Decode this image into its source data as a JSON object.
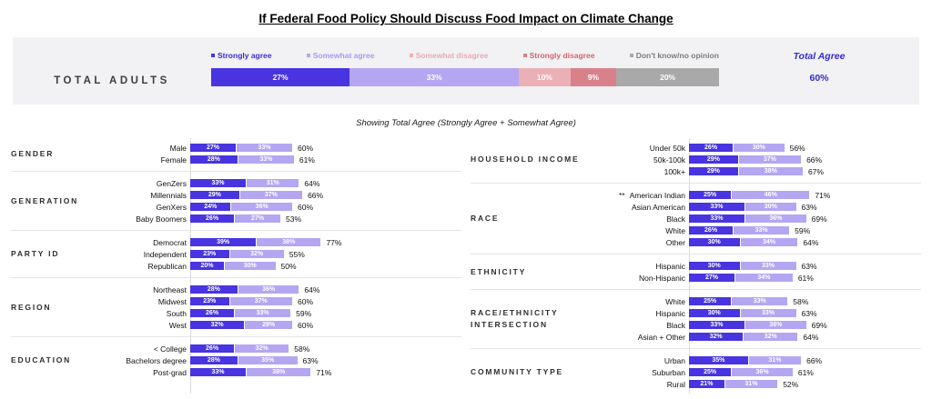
{
  "chart_data": {
    "type": "bar",
    "stacked": true,
    "title": "If Federal Food Policy Should Discuss Food Impact on Climate Change",
    "subtitle": "Showing Total Agree (Strongly Agree + Somewhat Agree)",
    "colors": {
      "strongly_agree": "#4834e0",
      "somewhat_agree": "#b5a6f2",
      "somewhat_disagree": "#eab0b6",
      "strongly_disagree": "#d8818b",
      "dont_know": "#a9a9a9",
      "accent_blue": "#352bd1",
      "band_background": "#f2f1f3"
    },
    "legend": [
      {
        "key": "strongly_agree",
        "label": "Strongly agree",
        "text_color": "#3a2bd4"
      },
      {
        "key": "somewhat_agree",
        "label": "Somewhat agree",
        "text_color": "#a89bf0"
      },
      {
        "key": "somewhat_disagree",
        "label": "Somewhat disagree",
        "text_color": "#eaacb4"
      },
      {
        "key": "strongly_disagree",
        "label": "Strongly disagree",
        "text_color": "#d56470"
      },
      {
        "key": "dont_know",
        "label": "Don't know/no opinion",
        "text_color": "#7d7d7d"
      }
    ],
    "total_adults": {
      "label": "TOTAL ADULTS",
      "series": {
        "strongly_agree": 27,
        "somewhat_agree": 33,
        "somewhat_disagree": 10,
        "strongly_disagree": 9,
        "dont_know": 20
      },
      "total_agree_label": "Total Agree",
      "total_agree": 60
    },
    "columns": {
      "left": [
        {
          "name": "GENDER",
          "rows": [
            {
              "label": "Male",
              "strongly_agree": 27,
              "somewhat_agree": 33,
              "total_agree": 60
            },
            {
              "label": "Female",
              "strongly_agree": 28,
              "somewhat_agree": 33,
              "total_agree": 61
            }
          ]
        },
        {
          "name": "GENERATION",
          "rows": [
            {
              "label": "GenZers",
              "strongly_agree": 33,
              "somewhat_agree": 31,
              "total_agree": 64
            },
            {
              "label": "Millennials",
              "strongly_agree": 29,
              "somewhat_agree": 37,
              "total_agree": 66
            },
            {
              "label": "GenXers",
              "strongly_agree": 24,
              "somewhat_agree": 36,
              "total_agree": 60
            },
            {
              "label": "Baby Boomers",
              "strongly_agree": 26,
              "somewhat_agree": 27,
              "total_agree": 53
            }
          ]
        },
        {
          "name": "PARTY ID",
          "rows": [
            {
              "label": "Democrat",
              "strongly_agree": 39,
              "somewhat_agree": 38,
              "total_agree": 77
            },
            {
              "label": "Independent",
              "strongly_agree": 23,
              "somewhat_agree": 32,
              "total_agree": 55
            },
            {
              "label": "Republican",
              "strongly_agree": 20,
              "somewhat_agree": 30,
              "total_agree": 50
            }
          ]
        },
        {
          "name": "REGION",
          "rows": [
            {
              "label": "Northeast",
              "strongly_agree": 28,
              "somewhat_agree": 36,
              "total_agree": 64
            },
            {
              "label": "Midwest",
              "strongly_agree": 23,
              "somewhat_agree": 37,
              "total_agree": 60
            },
            {
              "label": "South",
              "strongly_agree": 26,
              "somewhat_agree": 33,
              "total_agree": 59
            },
            {
              "label": "West",
              "strongly_agree": 32,
              "somewhat_agree": 28,
              "total_agree": 60
            }
          ]
        },
        {
          "name": "EDUCATION",
          "rows": [
            {
              "label": "< College",
              "strongly_agree": 26,
              "somewhat_agree": 32,
              "total_agree": 58
            },
            {
              "label": "Bachelors degree",
              "strongly_agree": 28,
              "somewhat_agree": 35,
              "total_agree": 63
            },
            {
              "label": "Post-grad",
              "strongly_agree": 33,
              "somewhat_agree": 38,
              "total_agree": 71
            }
          ]
        }
      ],
      "right": [
        {
          "name": "HOUSEHOLD INCOME",
          "rows": [
            {
              "label": "Under 50k",
              "strongly_agree": 26,
              "somewhat_agree": 30,
              "total_agree": 56
            },
            {
              "label": "50k-100k",
              "strongly_agree": 29,
              "somewhat_agree": 37,
              "total_agree": 66
            },
            {
              "label": "100k+",
              "strongly_agree": 29,
              "somewhat_agree": 38,
              "total_agree": 67
            }
          ]
        },
        {
          "name": "RACE",
          "rows": [
            {
              "label": "American Indian",
              "prefix": "**",
              "strongly_agree": 25,
              "somewhat_agree": 46,
              "total_agree": 71
            },
            {
              "label": "Asian American",
              "strongly_agree": 33,
              "somewhat_agree": 30,
              "total_agree": 63
            },
            {
              "label": "Black",
              "strongly_agree": 33,
              "somewhat_agree": 36,
              "total_agree": 69
            },
            {
              "label": "White",
              "strongly_agree": 26,
              "somewhat_agree": 33,
              "total_agree": 59
            },
            {
              "label": "Other",
              "strongly_agree": 30,
              "somewhat_agree": 34,
              "total_agree": 64
            }
          ]
        },
        {
          "name": "ETHNICITY",
          "rows": [
            {
              "label": "Hispanic",
              "strongly_agree": 30,
              "somewhat_agree": 33,
              "total_agree": 63
            },
            {
              "label": "Non-Hispanic",
              "strongly_agree": 27,
              "somewhat_agree": 34,
              "total_agree": 61
            }
          ]
        },
        {
          "name": "RACE/ETHNICITY INTERSECTION",
          "rows": [
            {
              "label": "White",
              "strongly_agree": 25,
              "somewhat_agree": 33,
              "total_agree": 58
            },
            {
              "label": "Hispanic",
              "strongly_agree": 30,
              "somewhat_agree": 33,
              "total_agree": 63
            },
            {
              "label": "Black",
              "strongly_agree": 33,
              "somewhat_agree": 36,
              "total_agree": 69
            },
            {
              "label": "Asian + Other",
              "strongly_agree": 32,
              "somewhat_agree": 32,
              "total_agree": 64
            }
          ]
        },
        {
          "name": "COMMUNITY TYPE",
          "rows": [
            {
              "label": "Urban",
              "strongly_agree": 35,
              "somewhat_agree": 31,
              "total_agree": 66
            },
            {
              "label": "Suburban",
              "strongly_agree": 25,
              "somewhat_agree": 36,
              "total_agree": 61
            },
            {
              "label": "Rural",
              "strongly_agree": 21,
              "somewhat_agree": 31,
              "total_agree": 52
            }
          ]
        }
      ]
    }
  }
}
